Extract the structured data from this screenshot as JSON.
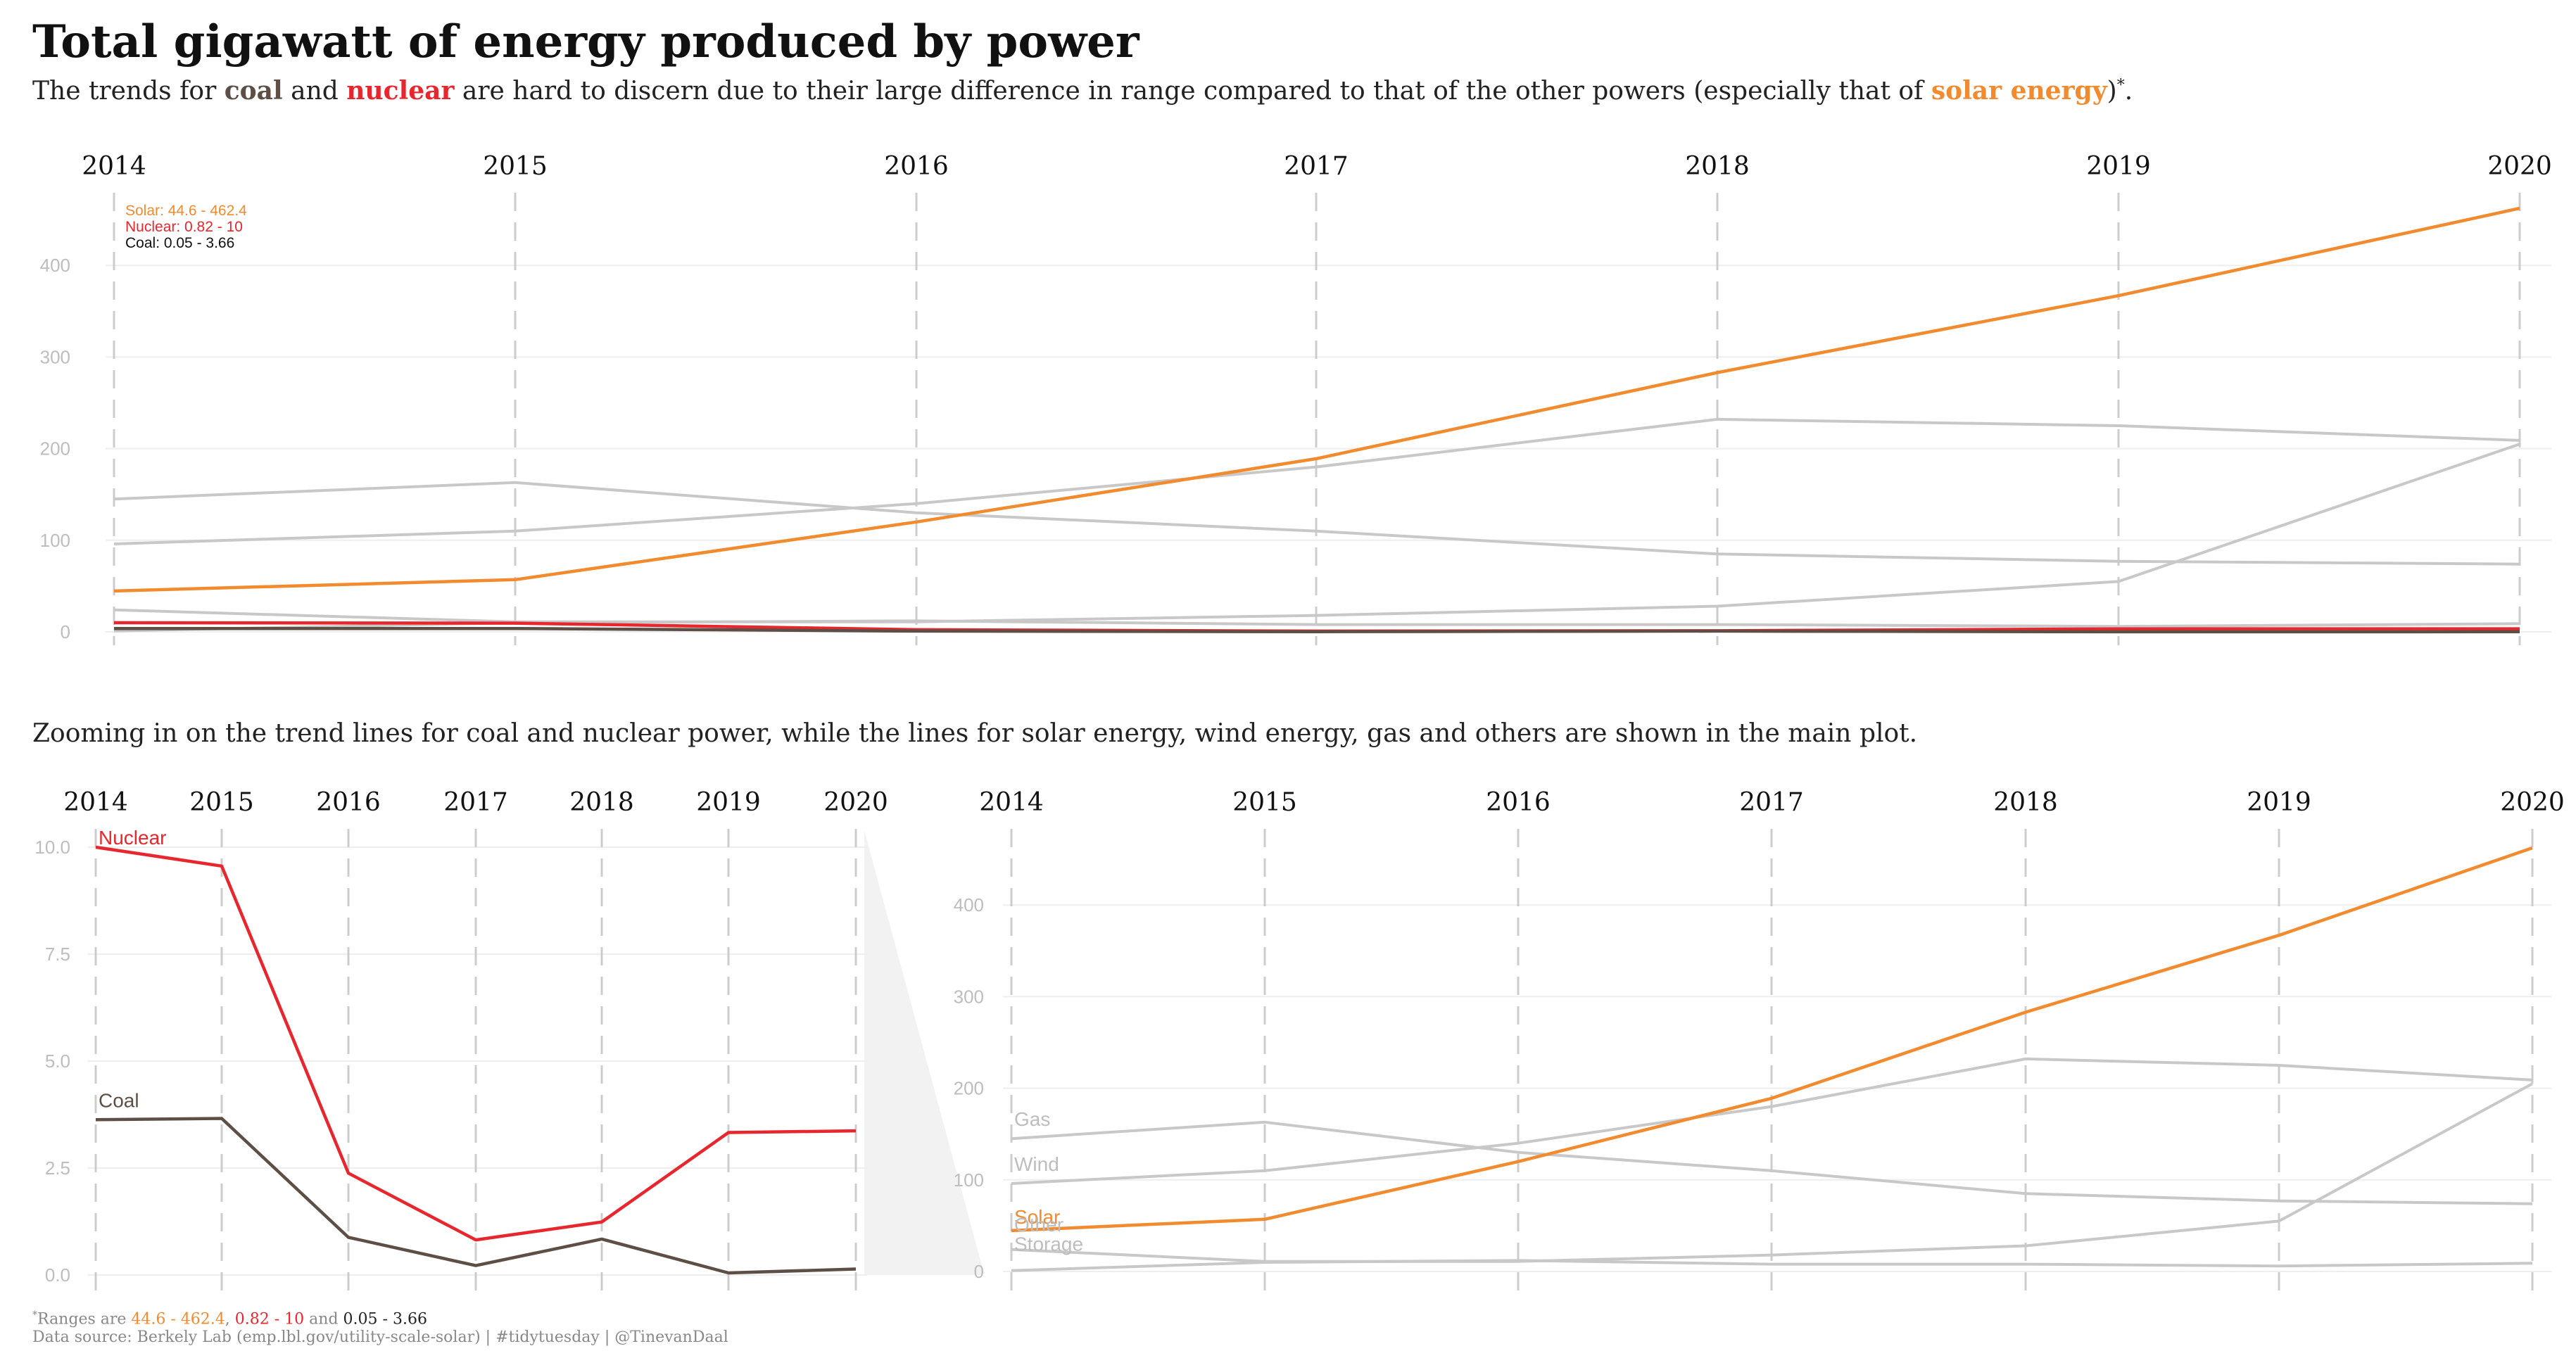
{
  "title": "Total gigawatt of energy produced by power",
  "subtitle": {
    "prefix": "The trends for ",
    "coal": "coal",
    "and": " and ",
    "nuclear": "nuclear",
    "middle": " are hard to discern due to their large difference in range compared to that of the other powers (especially that of ",
    "solar": "solar energy",
    "suffix": ")",
    "mark": "*",
    "end": "."
  },
  "zoom_text": "Zooming in on the trend lines for coal and nuclear power, while the lines for solar energy, wind energy, gas and others are shown in the main plot.",
  "footnote": {
    "mark": "*",
    "prefix": "Ranges are ",
    "solar_range": "44.6 - 462.4",
    "sep": ", ",
    "nuclear_range": "0.82 - 10",
    "and": " and ",
    "coal_range": "0.05 - 3.66",
    "source": "Data source: Berkely Lab (emp.lbl.gov/utility-scale-solar) | #tidytuesday | @TinevanDaal"
  },
  "colors": {
    "solar": "#f28a2e",
    "nuclear": "#e8262d",
    "coal": "#5d4f45",
    "other": "#c8c8c8",
    "grid": "#eeeeee",
    "vline": "#cccccc"
  },
  "chart_data": [
    {
      "type": "line",
      "title": "Total gigawatt of energy produced by power",
      "x": [
        2014,
        2015,
        2016,
        2017,
        2018,
        2019,
        2020
      ],
      "ylim": [
        0,
        462.4
      ],
      "yticks": [
        0,
        100,
        200,
        300,
        400
      ],
      "range_labels": [
        "Solar: 44.6 - 462.4",
        "Nuclear: 0.82 - 10",
        "Coal: 0.05 - 3.66"
      ],
      "series": [
        {
          "key": "gas",
          "color": "#c8c8c8",
          "values": [
            145,
            163,
            130,
            110,
            85,
            77,
            74
          ]
        },
        {
          "key": "wind",
          "color": "#c8c8c8",
          "values": [
            96,
            110,
            140,
            180,
            232,
            225,
            209
          ]
        },
        {
          "key": "other",
          "color": "#c8c8c8",
          "values": [
            24,
            11,
            11,
            18,
            28,
            55,
            205
          ]
        },
        {
          "key": "storage",
          "color": "#c8c8c8",
          "values": [
            1,
            10,
            12,
            8,
            8,
            6,
            9
          ]
        },
        {
          "key": "solar",
          "color": "#f28a2e",
          "values": [
            44.6,
            57,
            120,
            189,
            283,
            367,
            462.4
          ]
        },
        {
          "key": "nuclear",
          "color": "#e8262d",
          "values": [
            10,
            9.56,
            2.38,
            0.82,
            1.24,
            3.33,
            3.37
          ]
        },
        {
          "key": "coal",
          "color": "#5d4f45",
          "values": [
            3.63,
            3.66,
            0.88,
            0.22,
            0.84,
            0.05,
            0.14
          ]
        }
      ]
    },
    {
      "type": "line",
      "x": [
        2014,
        2015,
        2016,
        2017,
        2018,
        2019,
        2020
      ],
      "ylim": [
        0,
        10
      ],
      "yticks": [
        0.0,
        2.5,
        5.0,
        7.5,
        10.0
      ],
      "series": [
        {
          "name": "Nuclear",
          "color": "#e8262d",
          "values": [
            10,
            9.56,
            2.38,
            0.82,
            1.24,
            3.33,
            3.37
          ]
        },
        {
          "name": "Coal",
          "color": "#5d4f45",
          "values": [
            3.63,
            3.66,
            0.88,
            0.22,
            0.84,
            0.05,
            0.14
          ]
        }
      ]
    },
    {
      "type": "line",
      "x": [
        2014,
        2015,
        2016,
        2017,
        2018,
        2019,
        2020
      ],
      "ylim": [
        0,
        462.4
      ],
      "yticks": [
        0,
        100,
        200,
        300,
        400
      ],
      "series": [
        {
          "name": "Gas",
          "color": "#c8c8c8",
          "values": [
            145,
            163,
            130,
            110,
            85,
            77,
            74
          ]
        },
        {
          "name": "Wind",
          "color": "#c8c8c8",
          "values": [
            96,
            110,
            140,
            180,
            232,
            225,
            209
          ]
        },
        {
          "name": "Solar",
          "color": "#f28a2e",
          "values": [
            44.6,
            57,
            120,
            189,
            283,
            367,
            462.4
          ]
        },
        {
          "name": "Other",
          "color": "#c8c8c8",
          "values": [
            24,
            11,
            11,
            18,
            28,
            55,
            205
          ]
        },
        {
          "name": "Storage",
          "color": "#c8c8c8",
          "values": [
            1,
            10,
            12,
            8,
            8,
            6,
            9
          ]
        }
      ]
    }
  ]
}
